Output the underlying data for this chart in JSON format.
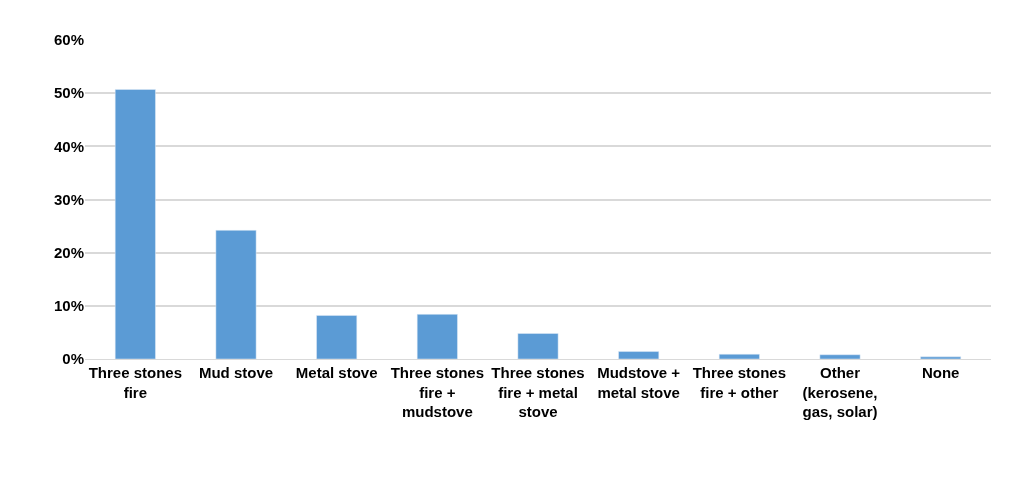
{
  "chart_data": {
    "type": "bar",
    "categories": [
      "Three stones fire",
      "Mud stove",
      "Metal stove",
      "Three stones fire + mudstove",
      "Three stones fire + metal stove",
      "Mudstove + metal stove",
      "Three stones fire + other",
      "Other (kerosene, gas, solar)",
      "None"
    ],
    "values": [
      50.7,
      24.2,
      8.2,
      8.4,
      4.8,
      1.4,
      0.9,
      0.8,
      0.4
    ],
    "color": "#5b9bd5",
    "ylim": [
      0,
      60
    ],
    "yticks": [
      {
        "value": 0,
        "label": "0%"
      },
      {
        "value": 10,
        "label": "10%"
      },
      {
        "value": 20,
        "label": "20%"
      },
      {
        "value": 30,
        "label": "30%"
      },
      {
        "value": 40,
        "label": "40%"
      },
      {
        "value": 50,
        "label": "50%"
      },
      {
        "value": 60,
        "label": "60%"
      }
    ],
    "grid": "y"
  }
}
